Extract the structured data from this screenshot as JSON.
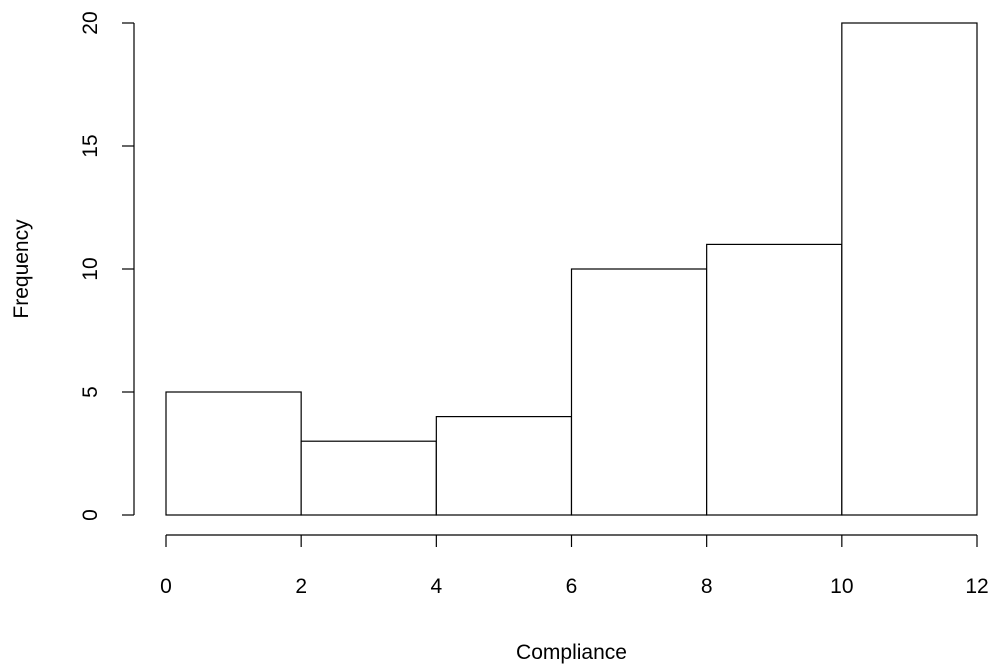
{
  "chart_data": {
    "type": "bar",
    "bin_edges": [
      0,
      2,
      4,
      6,
      8,
      10,
      12
    ],
    "values": [
      5,
      3,
      4,
      10,
      11,
      20
    ],
    "title": "",
    "xlabel": "Compliance",
    "ylabel": "Frequency",
    "xlim": [
      0,
      12
    ],
    "ylim": [
      0,
      20
    ],
    "x_ticks": [
      "0",
      "2",
      "4",
      "6",
      "8",
      "10",
      "12"
    ],
    "y_ticks": [
      "0",
      "5",
      "10",
      "15",
      "20"
    ],
    "grid": false,
    "bar_fill": "#ffffff",
    "bar_stroke": "#000000"
  }
}
